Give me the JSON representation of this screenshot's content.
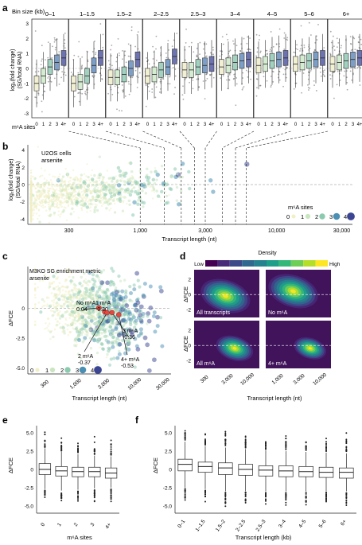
{
  "palette": {
    "m0": "#f1efc4",
    "m1": "#c9e6c0",
    "m2": "#8ccab0",
    "m3": "#4b8fb4",
    "m4": "#3c4592",
    "box_a": [
      "#f2f0d2",
      "#d4ecd0",
      "#a2d1c0",
      "#7d9fc7",
      "#6d73b0"
    ],
    "red": "#e04a40",
    "purple_bg": "#41135b",
    "dash": "#999999"
  },
  "labels": {
    "panel_a": "a",
    "panel_b": "b",
    "panel_c": "c",
    "panel_d": "d",
    "panel_e": "e",
    "panel_f": "f",
    "bin_size": "Bin size (kb)",
    "m6a_sites": "m⁶A sites",
    "ylab_a1": "log₂(fold change)",
    "ylab_a2": "(SG/total RNA)",
    "b_cells": "U2OS cells",
    "b_treat": "arsenite",
    "b_legend_title": "m⁶A sites",
    "transcript_length": "Transcript length (nt)",
    "c_title": "M3KO SG enrichment metric",
    "c_treat": "arsenite",
    "dfce": "ΔFCE",
    "density": "Density",
    "low": "Low",
    "high": "High",
    "e_xlabel": "m⁶A sites",
    "f_xlabel": "Transcript length (kb)"
  },
  "panel_a": {
    "bins": [
      "0–1",
      "1–1.5",
      "1.5–2",
      "2–2.5",
      "2.5–3",
      "3–4",
      "4–5",
      "5–6",
      "6+"
    ],
    "site_labels": [
      "0",
      "1",
      "2",
      "3",
      "4+"
    ],
    "y_ticks": [
      3,
      2,
      1,
      0,
      -1,
      -2,
      -3
    ],
    "medians": [
      [
        -1.0,
        -0.5,
        0.1,
        0.4,
        0.7
      ],
      [
        -1.0,
        -0.9,
        -0.5,
        0.2,
        0.7
      ],
      [
        -0.6,
        -0.6,
        -0.4,
        0.0,
        0.6
      ],
      [
        -0.5,
        -0.4,
        -0.1,
        0.1,
        0.8
      ],
      [
        -0.1,
        -0.1,
        0.1,
        0.2,
        0.3
      ],
      [
        0.1,
        0.2,
        0.4,
        0.5,
        0.6
      ],
      [
        0.2,
        0.3,
        0.5,
        0.6,
        0.7
      ],
      [
        0.3,
        0.4,
        0.5,
        0.6,
        0.7
      ],
      [
        0.3,
        0.4,
        0.5,
        0.6,
        0.7
      ]
    ]
  },
  "panel_b": {
    "y_ticks": [
      4,
      2,
      0,
      -2,
      -4
    ],
    "x_ticks": [
      "300",
      "1,000",
      "3,000",
      "10,000",
      "30,000"
    ],
    "x_tick_values": [
      300,
      1000,
      3000,
      10000,
      30000
    ],
    "bin_edges": [
      1000,
      1500,
      2000,
      2500,
      3000,
      4000,
      5000,
      6000
    ],
    "legend": [
      "0",
      "1",
      "2",
      "3",
      "4+"
    ]
  },
  "panel_c": {
    "y_ticks": [
      "0",
      "-2.5",
      "-5.0"
    ],
    "y_tick_values": [
      0,
      -2.5,
      -5.0
    ],
    "x_ticks": [
      "300",
      "1,000",
      "3,000",
      "10,000",
      "30,000"
    ],
    "x_tick_values": [
      300,
      1000,
      3000,
      10000,
      30000
    ],
    "legend": [
      "0",
      "1",
      "2",
      "3",
      "4+"
    ],
    "annotations": [
      {
        "label": "No m⁶A",
        "value": "0.04",
        "x": 2400,
        "y": 0.04
      },
      {
        "label": "1 m⁶A",
        "value": "-0.30",
        "x": 3000,
        "y": -0.3
      },
      {
        "label": "2 m⁶A",
        "value": "-0.37",
        "x": 3300,
        "y": -0.37
      },
      {
        "label": "3 m⁶A",
        "value": "-0.36",
        "x": 4000,
        "y": -0.36
      },
      {
        "label": "4+ m⁶A",
        "value": "-0.53",
        "x": 5200,
        "y": -0.53
      }
    ]
  },
  "panel_d": {
    "y_ticks": [
      "2",
      "0",
      "-2"
    ],
    "x_ticks": [
      "300",
      "3,000",
      "10,000"
    ],
    "x_ticks_right": [
      "1,000",
      "3,000",
      "10,000"
    ],
    "panels": [
      {
        "title": "All transcripts",
        "cx": 0.48,
        "cy": 0.55,
        "spread": 1.0
      },
      {
        "title": "No m⁶A",
        "cx": 0.42,
        "cy": 0.45,
        "spread": 1.0
      },
      {
        "title": "All m⁶A",
        "cx": 0.62,
        "cy": 0.58,
        "spread": 0.75
      },
      {
        "title": "4+ m⁶A",
        "cx": 0.68,
        "cy": 0.58,
        "spread": 0.65
      }
    ]
  },
  "panel_e": {
    "type": "box",
    "categories": [
      "0",
      "1",
      "2",
      "3",
      "4+"
    ],
    "y_ticks": [
      "5.0",
      "2.5",
      "0",
      "-2.5",
      "-5.0"
    ],
    "y_tick_values": [
      5.0,
      2.5,
      0,
      -2.5,
      -5.0
    ],
    "boxes": [
      {
        "q1": -0.7,
        "med": 0.0,
        "q3": 0.8,
        "lo": -2.7,
        "hi": 2.9
      },
      {
        "q1": -0.9,
        "med": -0.2,
        "q3": 0.4,
        "lo": -2.9,
        "hi": 2.4
      },
      {
        "q1": -1.0,
        "med": -0.3,
        "q3": 0.3,
        "lo": -2.8,
        "hi": 2.1
      },
      {
        "q1": -1.0,
        "med": -0.3,
        "q3": 0.3,
        "lo": -2.6,
        "hi": 1.9
      },
      {
        "q1": -1.2,
        "med": -0.5,
        "q3": 0.2,
        "lo": -2.5,
        "hi": 1.8
      }
    ]
  },
  "panel_f": {
    "type": "box",
    "categories": [
      "0–1",
      "1–1.5",
      "1.5–2",
      "2–2.5",
      "2.5–3",
      "3–4",
      "4–5",
      "5–6",
      "6+"
    ],
    "y_ticks": [
      "5.0",
      "2.5",
      "0",
      "-2.5",
      "-5.0"
    ],
    "y_tick_values": [
      5.0,
      2.5,
      0,
      -2.5,
      -5.0
    ],
    "boxes": [
      {
        "q1": -0.2,
        "med": 0.7,
        "q3": 1.4,
        "lo": -2.5,
        "hi": 3.8
      },
      {
        "q1": -0.4,
        "med": 0.4,
        "q3": 1.0,
        "lo": -2.7,
        "hi": 3.2
      },
      {
        "q1": -0.7,
        "med": 0.2,
        "q3": 0.9,
        "lo": -3.0,
        "hi": 3.0
      },
      {
        "q1": -0.8,
        "med": 0.0,
        "q3": 0.7,
        "lo": -3.0,
        "hi": 2.8
      },
      {
        "q1": -0.9,
        "med": -0.1,
        "q3": 0.5,
        "lo": -3.0,
        "hi": 2.6
      },
      {
        "q1": -1.0,
        "med": -0.2,
        "q3": 0.5,
        "lo": -3.0,
        "hi": 2.5
      },
      {
        "q1": -1.0,
        "med": -0.3,
        "q3": 0.4,
        "lo": -3.0,
        "hi": 2.4
      },
      {
        "q1": -1.1,
        "med": -0.4,
        "q3": 0.3,
        "lo": -3.0,
        "hi": 2.3
      },
      {
        "q1": -1.2,
        "med": -0.4,
        "q3": 0.2,
        "lo": -3.0,
        "hi": 2.2
      }
    ]
  },
  "chart_data": [
    {
      "type": "box",
      "title": "",
      "categories": [
        "0–1",
        "1–1.5",
        "1.5–2",
        "2–2.5",
        "2.5–3",
        "3–4",
        "4–5",
        "5–6",
        "6+"
      ],
      "ylabel": "log₂(fold change) (SG/total RNA)",
      "xlabel": "m⁶A sites",
      "ylim": [
        -3.3,
        3.3
      ]
    },
    {
      "type": "scatter",
      "title": "",
      "xlabel": "Transcript length (nt)",
      "ylabel": "log₂(fold change) (SG/total RNA)",
      "xscale": "log",
      "xlim": [
        150,
        30000
      ],
      "ylim": [
        -4.5,
        4.5
      ]
    },
    {
      "type": "scatter",
      "title": "M3KO SG enrichment metric",
      "xlabel": "Transcript length (nt)",
      "ylabel": "ΔFCE",
      "xscale": "log",
      "xlim": [
        150,
        40000
      ],
      "ylim": [
        -5.5,
        3.5
      ]
    },
    {
      "type": "heatmap",
      "title": "",
      "series": [
        {
          "name": "All transcripts"
        },
        {
          "name": "No m⁶A"
        },
        {
          "name": "All m⁶A"
        },
        {
          "name": "4+ m⁶A"
        }
      ],
      "xlabel": "Transcript length (nt)",
      "ylabel": "ΔFCE"
    },
    {
      "type": "box",
      "categories": [
        "0",
        "1",
        "2",
        "3",
        "4+"
      ],
      "xlabel": "m⁶A sites",
      "ylabel": "ΔFCE",
      "ylim": [
        -6,
        6
      ]
    },
    {
      "type": "box",
      "categories": [
        "0–1",
        "1–1.5",
        "1.5–2",
        "2–2.5",
        "2.5–3",
        "3–4",
        "4–5",
        "5–6",
        "6+"
      ],
      "xlabel": "Transcript length (kb)",
      "ylabel": "ΔFCE",
      "ylim": [
        -6,
        6
      ]
    }
  ]
}
